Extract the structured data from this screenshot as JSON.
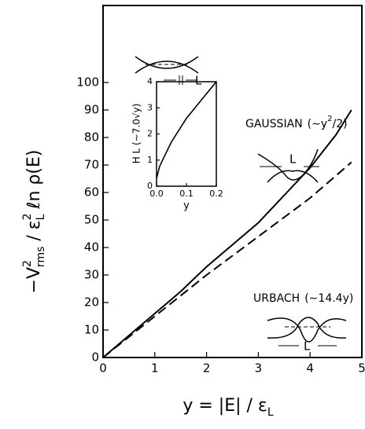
{
  "chart_data": [
    {
      "type": "line",
      "xlabel": [
        "y = |E| / ε",
        "L"
      ],
      "ylabel": [
        "−V",
        "2",
        "rms",
        " / ε",
        "2",
        "L",
        "  ℓn ρ(E)"
      ],
      "xlim": [
        0,
        5
      ],
      "ylim": [
        0,
        128
      ],
      "xticks": [
        0,
        1,
        2,
        3,
        4,
        5
      ],
      "yticks": [
        0,
        10,
        20,
        30,
        40,
        50,
        60,
        70,
        80,
        90,
        100
      ],
      "series": [
        {
          "name": "GAUSSIAN",
          "color": "#000000",
          "linestyle": "solid",
          "x": [
            0,
            0.5,
            1,
            1.5,
            2,
            2.5,
            3,
            3.5,
            4,
            4.5,
            4.8
          ],
          "values": [
            0,
            8,
            16,
            24,
            33,
            41,
            49,
            59,
            69,
            81,
            90
          ]
        },
        {
          "name": "URBACH",
          "color": "#000000",
          "linestyle": "dashed",
          "x": [
            0,
            1,
            2,
            3,
            4,
            4.8
          ],
          "values": [
            0,
            15,
            30,
            44,
            58,
            71
          ]
        }
      ],
      "annotations": {
        "gaussian": [
          "(∼y",
          "2",
          "/2)"
        ],
        "urbach": "(∼14.4y)",
        "L": [
          "L",
          "L",
          "L"
        ]
      }
    },
    {
      "type": "line",
      "xlabel": "y",
      "ylabel": "H L (∼7.0√y)",
      "xlim": [
        0,
        0.2
      ],
      "ylim": [
        0,
        4
      ],
      "xticks": [
        {
          "value": 0,
          "label": "0.0"
        },
        {
          "value": 0.1,
          "label": "0.1"
        },
        {
          "value": 0.2,
          "label": "0.2"
        }
      ],
      "yticks": [
        0,
        1,
        2,
        3,
        4
      ],
      "series": [
        {
          "color": "#000000",
          "linestyle": "solid",
          "x": [
            0,
            0.01,
            0.02,
            0.05,
            0.1,
            0.15,
            0.2
          ],
          "values": [
            0.3,
            0.75,
            1.0,
            1.7,
            2.6,
            3.3,
            4.0
          ]
        }
      ]
    }
  ]
}
